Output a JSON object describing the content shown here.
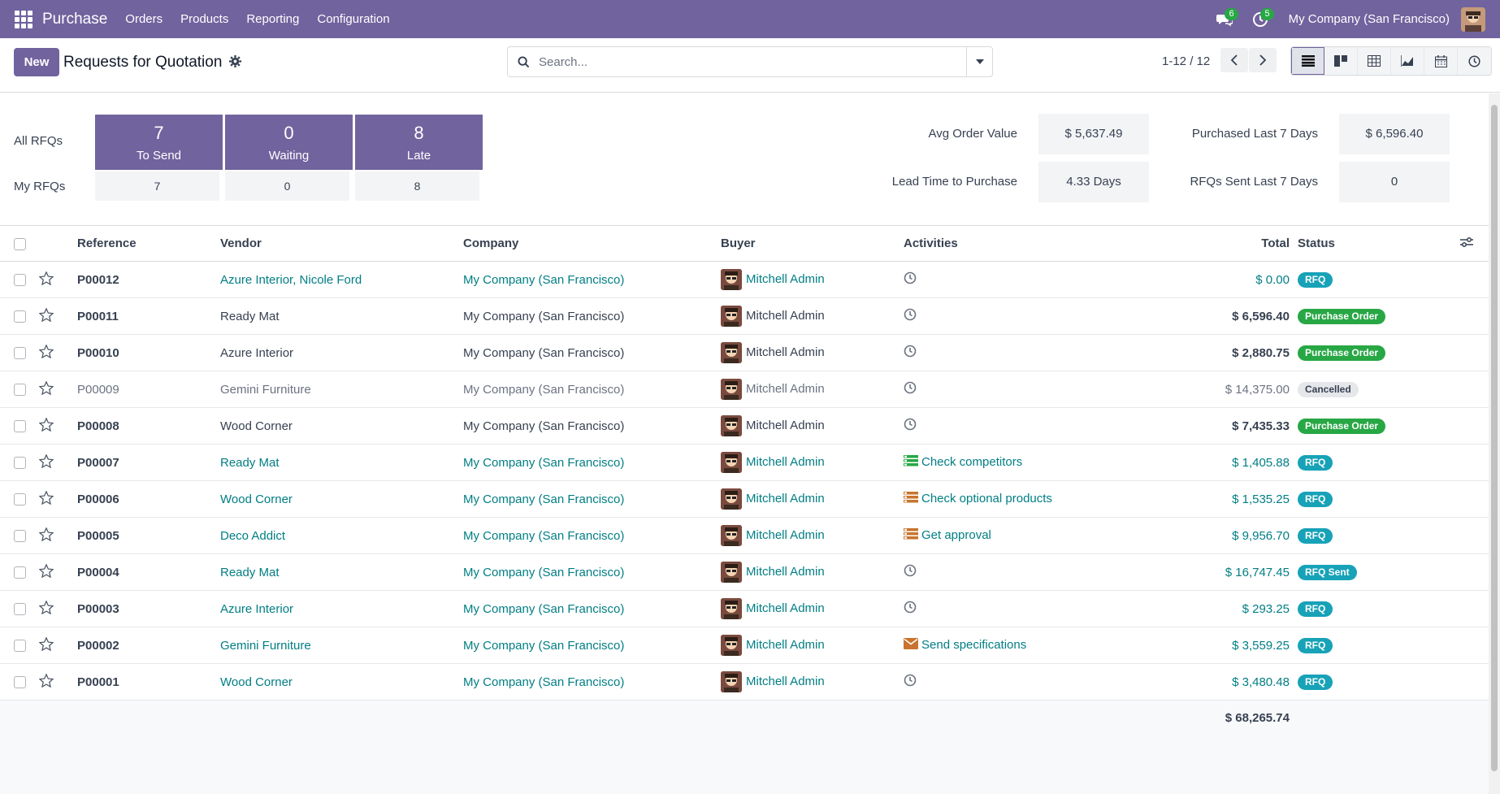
{
  "navbar": {
    "app_name": "Purchase",
    "menu": [
      "Orders",
      "Products",
      "Reporting",
      "Configuration"
    ],
    "messages_count": "6",
    "activities_count": "5",
    "company": "My Company (San Francisco)"
  },
  "control": {
    "new_label": "New",
    "title": "Requests for Quotation",
    "search_placeholder": "Search...",
    "pager": "1-12 / 12",
    "views": [
      "list-view-icon",
      "kanban-view-icon",
      "pivot-view-icon",
      "graph-view-icon",
      "calendar-view-icon",
      "activity-view-icon"
    ]
  },
  "dashboard": {
    "all_rfqs_label": "All RFQs",
    "my_rfqs_label": "My RFQs",
    "tiles": [
      {
        "num": "7",
        "label": "To Send",
        "mine": "7"
      },
      {
        "num": "0",
        "label": "Waiting",
        "mine": "0"
      },
      {
        "num": "8",
        "label": "Late",
        "mine": "8"
      }
    ],
    "kpis": {
      "avg_order_value_label": "Avg Order Value",
      "avg_order_value": "$ 5,637.49",
      "purchased_7d_label": "Purchased Last 7 Days",
      "purchased_7d": "$ 6,596.40",
      "lead_time_label": "Lead Time to Purchase",
      "lead_time": "4.33 Days",
      "rfqs_sent_label": "RFQs Sent Last 7 Days",
      "rfqs_sent": "0"
    }
  },
  "table": {
    "headers": {
      "reference": "Reference",
      "vendor": "Vendor",
      "company": "Company",
      "buyer": "Buyer",
      "activities": "Activities",
      "total": "Total",
      "status": "Status"
    },
    "rows": [
      {
        "ref": "P00012",
        "vendor": "Azure Interior, Nicole Ford",
        "company": "My Company (San Francisco)",
        "buyer": "Mitchell Admin",
        "activity": "",
        "total": "$ 0.00",
        "status": "RFQ"
      },
      {
        "ref": "P00011",
        "vendor": "Ready Mat",
        "company": "My Company (San Francisco)",
        "buyer": "Mitchell Admin",
        "activity": "",
        "total": "$ 6,596.40",
        "status": "Purchase Order"
      },
      {
        "ref": "P00010",
        "vendor": "Azure Interior",
        "company": "My Company (San Francisco)",
        "buyer": "Mitchell Admin",
        "activity": "",
        "total": "$ 2,880.75",
        "status": "Purchase Order"
      },
      {
        "ref": "P00009",
        "vendor": "Gemini Furniture",
        "company": "My Company (San Francisco)",
        "buyer": "Mitchell Admin",
        "activity": "",
        "total": "$ 14,375.00",
        "status": "Cancelled"
      },
      {
        "ref": "P00008",
        "vendor": "Wood Corner",
        "company": "My Company (San Francisco)",
        "buyer": "Mitchell Admin",
        "activity": "",
        "total": "$ 7,435.33",
        "status": "Purchase Order"
      },
      {
        "ref": "P00007",
        "vendor": "Ready Mat",
        "company": "My Company (San Francisco)",
        "buyer": "Mitchell Admin",
        "activity": "Check competitors",
        "total": "$ 1,405.88",
        "status": "RFQ"
      },
      {
        "ref": "P00006",
        "vendor": "Wood Corner",
        "company": "My Company (San Francisco)",
        "buyer": "Mitchell Admin",
        "activity": "Check optional products",
        "total": "$ 1,535.25",
        "status": "RFQ"
      },
      {
        "ref": "P00005",
        "vendor": "Deco Addict",
        "company": "My Company (San Francisco)",
        "buyer": "Mitchell Admin",
        "activity": "Get approval",
        "total": "$ 9,956.70",
        "status": "RFQ"
      },
      {
        "ref": "P00004",
        "vendor": "Ready Mat",
        "company": "My Company (San Francisco)",
        "buyer": "Mitchell Admin",
        "activity": "",
        "total": "$ 16,747.45",
        "status": "RFQ Sent"
      },
      {
        "ref": "P00003",
        "vendor": "Azure Interior",
        "company": "My Company (San Francisco)",
        "buyer": "Mitchell Admin",
        "activity": "",
        "total": "$ 293.25",
        "status": "RFQ"
      },
      {
        "ref": "P00002",
        "vendor": "Gemini Furniture",
        "company": "My Company (San Francisco)",
        "buyer": "Mitchell Admin",
        "activity": "Send specifications",
        "total": "$ 3,559.25",
        "status": "RFQ"
      },
      {
        "ref": "P00001",
        "vendor": "Wood Corner",
        "company": "My Company (San Francisco)",
        "buyer": "Mitchell Admin",
        "activity": "",
        "total": "$ 3,480.48",
        "status": "RFQ"
      }
    ],
    "grand_total": "$ 68,265.74"
  },
  "colors": {
    "brand": "#71639e",
    "link": "#017e84",
    "rfq": "#17a2b8",
    "po": "#28a745"
  }
}
